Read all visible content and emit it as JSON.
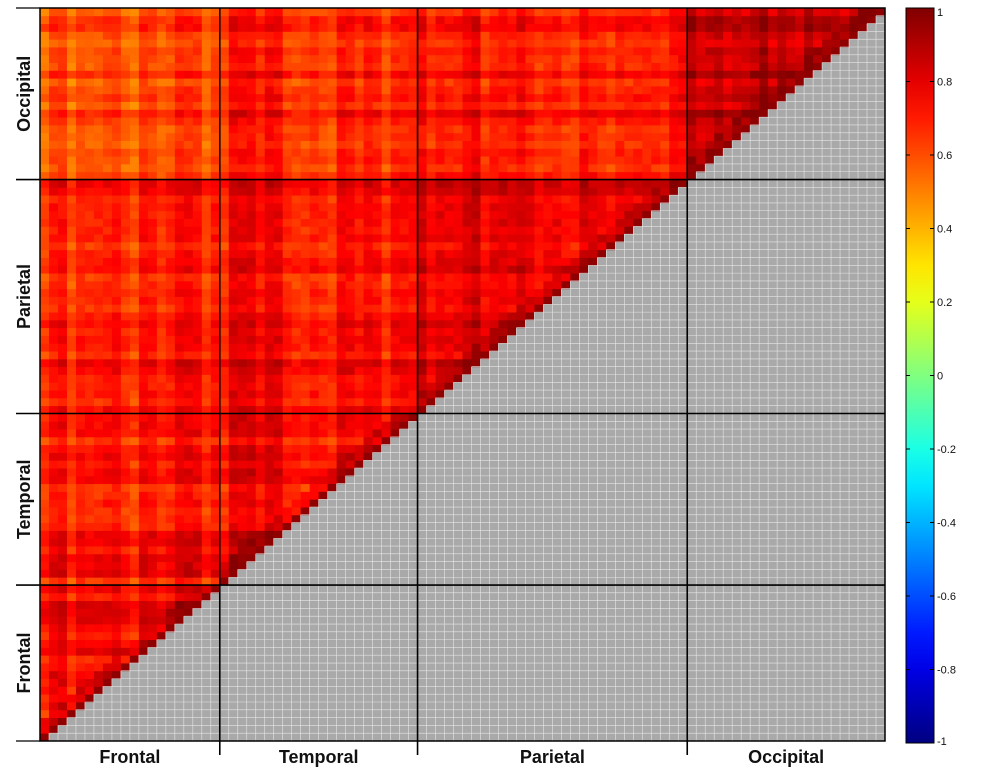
{
  "chart_data": {
    "type": "heatmap",
    "title": "",
    "matrix": "upper-triangular correlation matrix (lower triangle masked grey)",
    "regions": [
      {
        "name": "Frontal",
        "n": 20
      },
      {
        "name": "Temporal",
        "n": 22
      },
      {
        "name": "Parietal",
        "n": 30
      },
      {
        "name": "Occipital",
        "n": 22
      }
    ],
    "block_mean_correlation": {
      "Frontal-Frontal": 0.75,
      "Frontal-Temporal": 0.72,
      "Frontal-Parietal": 0.7,
      "Frontal-Occipital": 0.62,
      "Temporal-Temporal": 0.76,
      "Temporal-Parietal": 0.74,
      "Temporal-Occipital": 0.7,
      "Parietal-Parietal": 0.8,
      "Parietal-Occipital": 0.72,
      "Occipital-Occipital": 0.9
    },
    "masked_color": "#a9a9a9",
    "colorbar": {
      "colormap": "jet",
      "range": [
        -1,
        1
      ],
      "ticks": [
        "1",
        "0.8",
        "0.6",
        "0.4",
        "0.2",
        "0",
        "-0.2",
        "-0.4",
        "-0.6",
        "-0.8",
        "-1"
      ]
    },
    "x_axis": {
      "labels": [
        "Frontal",
        "Temporal",
        "Parietal",
        "Occipital"
      ]
    },
    "y_axis": {
      "labels": [
        "Frontal",
        "Temporal",
        "Parietal",
        "Occipital"
      ],
      "direction": "bottom-to-top"
    }
  }
}
